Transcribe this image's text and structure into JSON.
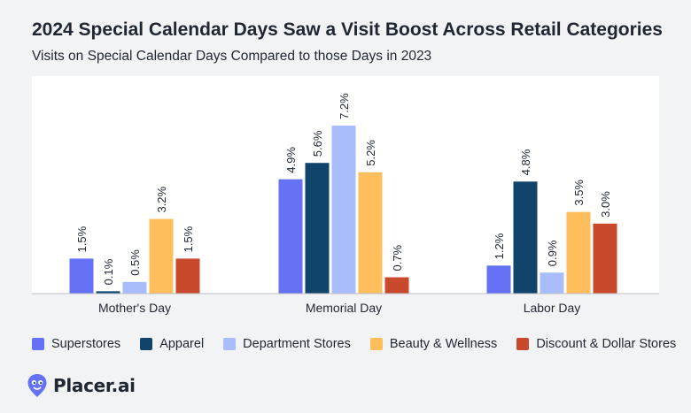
{
  "title": "2024 Special Calendar Days Saw a Visit Boost Across Retail Categories",
  "subtitle": "Visits on Special Calendar Days Compared to those Days in 2023",
  "brand": {
    "name": "Placer.ai",
    "logo_icon": "placer-pin-logo-icon"
  },
  "colors": {
    "background": "#f2f3f5",
    "plot_background": "#ffffff",
    "axis": "#b9bec6"
  },
  "chart_data": {
    "type": "bar",
    "categories": [
      "Mother's Day",
      "Memorial Day",
      "Labor Day"
    ],
    "series": [
      {
        "name": "Superstores",
        "color": "#6572f5",
        "values": [
          1.5,
          4.9,
          1.2
        ],
        "labels": [
          "1.5%",
          "4.9%",
          "1.2%"
        ]
      },
      {
        "name": "Apparel",
        "color": "#10446b",
        "values": [
          0.1,
          5.6,
          4.8
        ],
        "labels": [
          "0.1%",
          "5.6%",
          "4.8%"
        ]
      },
      {
        "name": "Department Stores",
        "color": "#a8bdfa",
        "values": [
          0.5,
          7.2,
          0.9
        ],
        "labels": [
          "0.5%",
          "7.2%",
          "0.9%"
        ]
      },
      {
        "name": "Beauty & Wellness",
        "color": "#ffbe5c",
        "values": [
          3.2,
          5.2,
          3.5
        ],
        "labels": [
          "3.2%",
          "5.2%",
          "3.5%"
        ]
      },
      {
        "name": "Discount & Dollar Stores",
        "color": "#c9492c",
        "values": [
          1.5,
          0.7,
          3.0
        ],
        "labels": [
          "1.5%",
          "0.7%",
          "3.0%"
        ]
      }
    ],
    "ylim": [
      0,
      8
    ],
    "grid": false,
    "legend_position": "bottom-left",
    "data_labels": true,
    "data_label_orientation": "vertical"
  }
}
